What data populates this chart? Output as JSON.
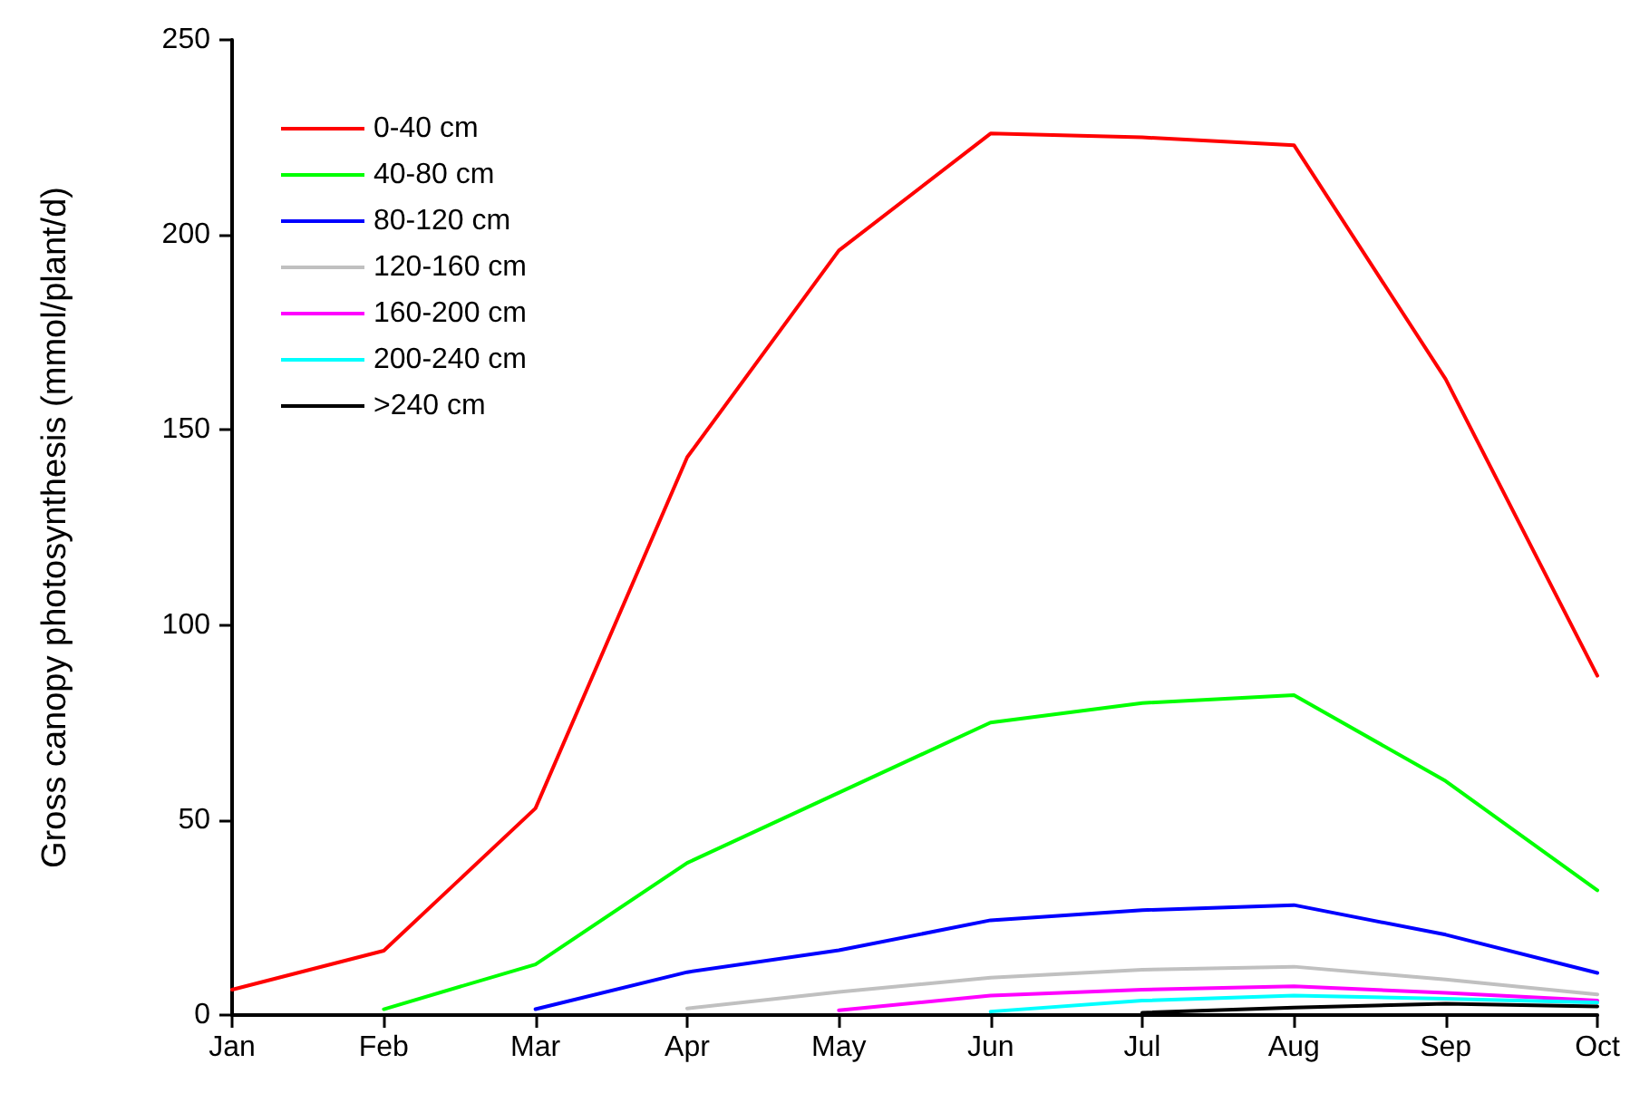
{
  "chart_data": {
    "type": "line",
    "ylabel": "Gross canopy photosynthesis (mmol/plant/d)",
    "categories": [
      "Jan",
      "Feb",
      "Mar",
      "Apr",
      "May",
      "Jun",
      "Jul",
      "Aug",
      "Sep",
      "Oct"
    ],
    "series": [
      {
        "name": "0-40 cm",
        "color": "#ff0000",
        "values": [
          6.5,
          16.5,
          53,
          143,
          196,
          226,
          225,
          223,
          163,
          87
        ]
      },
      {
        "name": "40-80 cm",
        "color": "#00ff00",
        "values": [
          null,
          1.5,
          13,
          39,
          57,
          75,
          80,
          82,
          60,
          32
        ]
      },
      {
        "name": "80-120 cm",
        "color": "#0000ff",
        "values": [
          null,
          null,
          1.5,
          11,
          16.6,
          24.3,
          26.9,
          28.2,
          20.6,
          10.8
        ]
      },
      {
        "name": "120-160 cm",
        "color": "#c0c0c0",
        "values": [
          null,
          null,
          null,
          1.7,
          5.9,
          9.6,
          11.6,
          12.4,
          9.1,
          5.3
        ]
      },
      {
        "name": "160-200 cm",
        "color": "#ff00ff",
        "values": [
          null,
          null,
          null,
          null,
          1.2,
          5,
          6.5,
          7.4,
          5.7,
          3.7
        ]
      },
      {
        "name": "200-240 cm",
        "color": "#00ffff",
        "values": [
          null,
          null,
          null,
          null,
          null,
          0.9,
          3.7,
          5,
          4.2,
          3.2
        ]
      },
      {
        "name": ">240 cm",
        "color": "#000000",
        "values": [
          null,
          null,
          null,
          null,
          null,
          null,
          0.6,
          1.9,
          2.9,
          2.2
        ]
      }
    ],
    "ylim": [
      0,
      250
    ],
    "yticks": [
      0,
      50,
      100,
      150,
      200,
      250
    ],
    "grid": false,
    "legend": "top left",
    "marker": "none",
    "line_style": "solid"
  }
}
